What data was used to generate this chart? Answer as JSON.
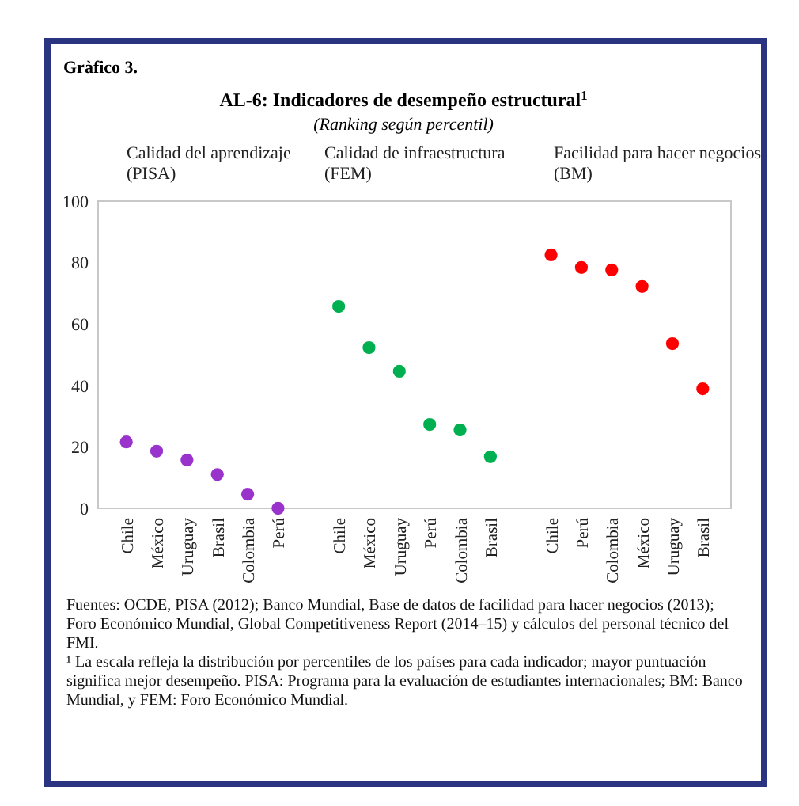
{
  "chart_data": {
    "type": "scatter",
    "title": "AL-6: Indicadores de desempeño estructural$^{1}$",
    "subtitle": "(Ranking según percentil)",
    "categories": [
      "Chile",
      "México",
      "Uruguay",
      "Brasil",
      "Colombia",
      "Perú",
      null,
      "Chile",
      "México",
      "Uruguay",
      "Perú",
      "Colombia",
      "Brasil",
      null,
      "Chile",
      "Perú",
      "Colombia",
      "México",
      "Uruguay",
      "Brasil"
    ],
    "series": [
      {
        "color": "#9933cc",
        "values": [
          21.6,
          18.6,
          15.7,
          11,
          4.6,
          0,
          null,
          null,
          null,
          null,
          null,
          null,
          null,
          null,
          null,
          null,
          null,
          null,
          null,
          null
        ]
      },
      {
        "color": "#00b050",
        "values": [
          null,
          null,
          null,
          null,
          null,
          null,
          null,
          65.7,
          52.3,
          44.6,
          27.3,
          25.5,
          16.8,
          null,
          null,
          null,
          null,
          null,
          null,
          null
        ]
      },
      {
        "color": "#ff0000",
        "values": [
          null,
          null,
          null,
          null,
          null,
          null,
          null,
          null,
          null,
          null,
          null,
          null,
          null,
          null,
          82.5,
          78.4,
          77.6,
          72.2,
          53.6,
          38.9
        ]
      }
    ],
    "ylim": [
      0,
      100
    ],
    "yticks": [
      0,
      20,
      40,
      60,
      80,
      100
    ],
    "grid": false,
    "marker": "circle",
    "annotations": [
      "Gràfico 3.",
      "Calidad del aprendizaje\n(PISA)",
      "Calidad de infraestructura\n(FEM)",
      "Facilidad para hacer negocios\n(BM)",
      "Fuentes: OCDE, PISA (2012); Banco Mundial, Base de datos de facilidad para hacer negocios (2013); Foro Económico Mundial, Global Competitiveness Report (2014–15) y cálculos del personal técnico del FMI.",
      "¹ La escala refleja la distribución por percentiles de los países para cada indicador; mayor puntuación significa mejor desempeño. PISA: Programa para la evaluación de estudiantes internacionales; BM: Banco Mundial, y FEM: Foro Económico Mundial."
    ]
  }
}
